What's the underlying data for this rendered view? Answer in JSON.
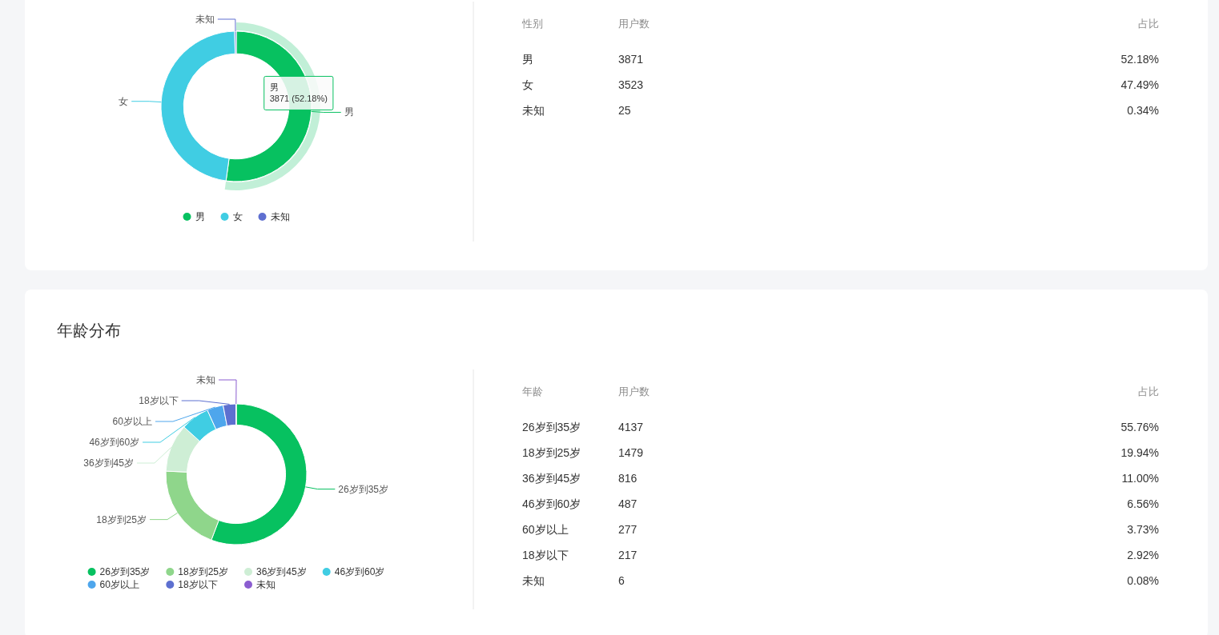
{
  "chart_data": [
    {
      "type": "donut",
      "categories": [
        "男",
        "女",
        "未知"
      ],
      "values": [
        52.18,
        47.49,
        0.34
      ],
      "colors": [
        "#07c160",
        "#40cde3",
        "#5e6fd0"
      ],
      "legend": "bottom",
      "annotations": [
        "性别",
        "用户数",
        "占比",
        "3871",
        "3523",
        "25",
        "52.18%",
        "47.49%",
        "0.34%",
        {
          "text": "男\n3871 (52.18%)",
          "x": "男"
        }
      ]
    },
    {
      "type": "donut",
      "title": "年龄分布",
      "categories": [
        "26岁到35岁",
        "18岁到25岁",
        "36岁到45岁",
        "46岁到60岁",
        "60岁以上",
        "18岁以下",
        "未知"
      ],
      "values": [
        55.76,
        19.94,
        11.0,
        6.56,
        3.73,
        2.92,
        0.08
      ],
      "colors": [
        "#07c160",
        "#8fd68b",
        "#ceeed5",
        "#40cde3",
        "#4ea6ec",
        "#5d70d0",
        "#8b5dd0"
      ],
      "legend": "bottom",
      "annotations": [
        "年龄",
        "用户数",
        "占比",
        "4137",
        "1479",
        "816",
        "487",
        "277",
        "217",
        "6",
        "55.76%",
        "19.94%",
        "11.00%",
        "6.56%",
        "3.73%",
        "2.92%",
        "0.08%"
      ]
    }
  ]
}
